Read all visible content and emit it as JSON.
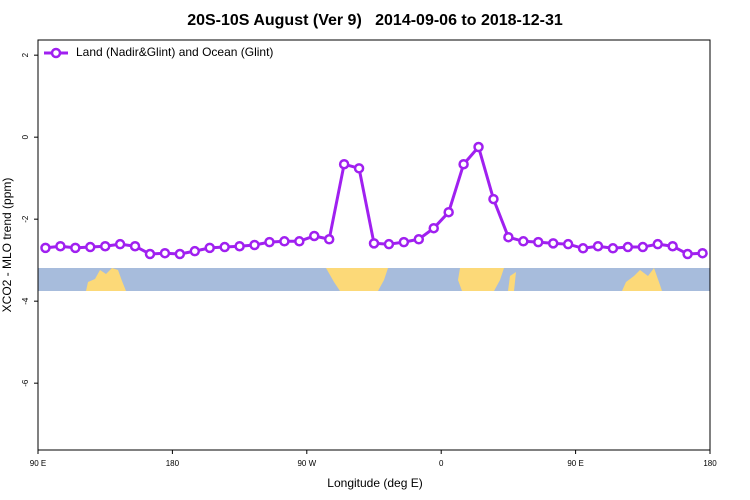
{
  "chart_data": {
    "type": "line",
    "title": "20S-10S August (Ver 9)   2014-09-06 to 2018-12-31",
    "x_label": "Longitude (deg E)",
    "y_label": "XCO2 - MLO trend (ppm)",
    "xlim": [
      90,
      540
    ],
    "xticks": [
      {
        "value": 90,
        "label": "90 E"
      },
      180,
      {
        "value": 270,
        "label": "90 W"
      },
      {
        "value": 360,
        "label": "0"
      },
      {
        "value": 450,
        "label": "90 E"
      },
      {
        "value": 540,
        "label": "180"
      }
    ],
    "ylim": [
      -7.63,
      2.37
    ],
    "yticks": [
      2,
      0,
      -2,
      -4,
      -6
    ],
    "legend": "top-left",
    "x": [
      95,
      105,
      115,
      125,
      135,
      145,
      155,
      165,
      175,
      185,
      195,
      205,
      215,
      225,
      235,
      245,
      255,
      265,
      275,
      285,
      295,
      305,
      315,
      325,
      335,
      345,
      355,
      365,
      375,
      385,
      395,
      405,
      415,
      425,
      435,
      445,
      455,
      465,
      475,
      485,
      495,
      505,
      515,
      525,
      535
    ],
    "series": [
      {
        "name": "Land (Nadir&Glint) and Ocean (Glint)",
        "color": "#a020f0",
        "values": [
          -2.7,
          -2.66,
          -2.7,
          -2.68,
          -2.66,
          -2.61,
          -2.66,
          -2.85,
          -2.83,
          -2.85,
          -2.78,
          -2.7,
          -2.68,
          -2.66,
          -2.63,
          -2.56,
          -2.54,
          -2.54,
          -2.41,
          -2.49,
          -0.66,
          -0.76,
          -2.59,
          -2.61,
          -2.56,
          -2.49,
          -2.22,
          -1.83,
          -0.66,
          -0.24,
          -1.51,
          -2.44,
          -2.54,
          -2.56,
          -2.59,
          -2.61,
          -2.71,
          -2.66,
          -2.71,
          -2.68,
          -2.68,
          -2.61,
          -2.66,
          -2.85,
          -2.83
        ]
      }
    ]
  }
}
